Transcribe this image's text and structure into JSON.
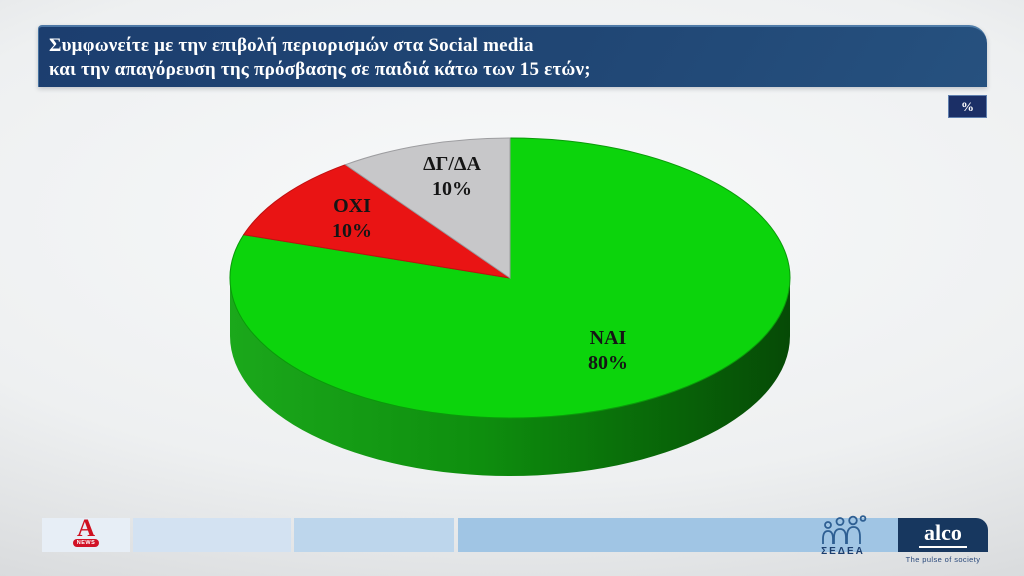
{
  "header": {
    "question_line1": "Συμφωνείτε με την επιβολή περιορισμών στα Social media",
    "question_line2": "και την απαγόρευση της πρόσβασης σε παιδιά κάτω των 15 ετών;",
    "unit_badge": "%"
  },
  "chart_data": {
    "type": "pie",
    "style": "3d",
    "title": "Συμφωνείτε με την επιβολή περιορισμών στα Social media και την απαγόρευση της πρόσβασης σε παιδιά κάτω των 15 ετών;",
    "unit": "%",
    "start_angle": "12-oclock",
    "direction": "clockwise",
    "legend_position": "labels-on-slices",
    "slices": [
      {
        "label": "ΝΑΙ",
        "value": 80,
        "display": "80%",
        "color": "#0cd40c",
        "stroke": "#0a9a0a"
      },
      {
        "label": "ΟΧΙ",
        "value": 10,
        "display": "10%",
        "color": "#e91414",
        "stroke": "#bf1010"
      },
      {
        "label": "ΔΓ/ΔΑ",
        "value": 10,
        "display": "10%",
        "color": "#c7c7c9",
        "stroke": "#9d9da0"
      }
    ]
  },
  "footer": {
    "alpha": {
      "letter": "A",
      "badge": "NEWS"
    },
    "sedea_label": "ΣΕΔΕΑ",
    "alco_name": "alco",
    "alco_tagline": "The pulse of society"
  },
  "colors": {
    "header_navy": "#1c3e6f",
    "badge_navy": "#1b2f66",
    "pie_side_green_dark": "#075c07",
    "pie_side_green_light": "#1ba81b",
    "footer_blue_light": "#d3e2f2",
    "footer_blue_dark": "#a0c5e4",
    "alco_navy": "#17375f",
    "alpha_red": "#d11226"
  }
}
